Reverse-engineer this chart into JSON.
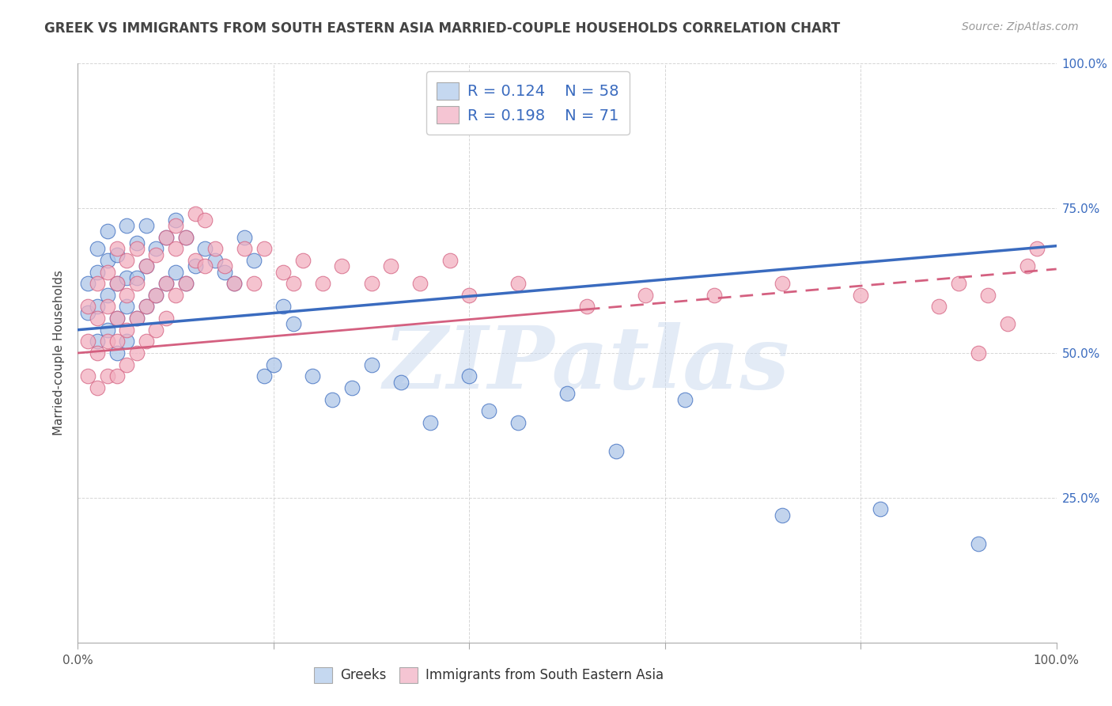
{
  "title": "GREEK VS IMMIGRANTS FROM SOUTH EASTERN ASIA MARRIED-COUPLE HOUSEHOLDS CORRELATION CHART",
  "source": "Source: ZipAtlas.com",
  "ylabel": "Married-couple Households",
  "watermark": "ZIPatlas",
  "blue_R": 0.124,
  "blue_N": 58,
  "pink_R": 0.198,
  "pink_N": 71,
  "xlim": [
    0.0,
    1.0
  ],
  "ylim": [
    0.0,
    1.0
  ],
  "blue_color": "#aec6e8",
  "pink_color": "#f2afc0",
  "blue_line_color": "#3a6bbf",
  "pink_line_color": "#d46080",
  "title_color": "#444444",
  "source_color": "#999999",
  "background_color": "#ffffff",
  "plot_bg_color": "#ffffff",
  "grid_color": "#cccccc",
  "legend_box_color_blue": "#c5d8f0",
  "legend_box_color_pink": "#f5c5d3",
  "blue_line_start_y": 0.54,
  "blue_line_end_y": 0.685,
  "pink_line_start_y": 0.5,
  "pink_line_end_y": 0.645,
  "blue_scatter_x": [
    0.01,
    0.01,
    0.02,
    0.02,
    0.02,
    0.02,
    0.03,
    0.03,
    0.03,
    0.03,
    0.04,
    0.04,
    0.04,
    0.04,
    0.05,
    0.05,
    0.05,
    0.05,
    0.06,
    0.06,
    0.06,
    0.07,
    0.07,
    0.07,
    0.08,
    0.08,
    0.09,
    0.09,
    0.1,
    0.1,
    0.11,
    0.11,
    0.12,
    0.13,
    0.14,
    0.15,
    0.16,
    0.17,
    0.18,
    0.19,
    0.2,
    0.21,
    0.22,
    0.24,
    0.26,
    0.28,
    0.3,
    0.33,
    0.36,
    0.4,
    0.42,
    0.45,
    0.5,
    0.55,
    0.62,
    0.72,
    0.82,
    0.92
  ],
  "blue_scatter_y": [
    0.57,
    0.62,
    0.52,
    0.58,
    0.64,
    0.68,
    0.54,
    0.6,
    0.66,
    0.71,
    0.5,
    0.56,
    0.62,
    0.67,
    0.52,
    0.58,
    0.63,
    0.72,
    0.56,
    0.63,
    0.69,
    0.58,
    0.65,
    0.72,
    0.6,
    0.68,
    0.62,
    0.7,
    0.64,
    0.73,
    0.62,
    0.7,
    0.65,
    0.68,
    0.66,
    0.64,
    0.62,
    0.7,
    0.66,
    0.46,
    0.48,
    0.58,
    0.55,
    0.46,
    0.42,
    0.44,
    0.48,
    0.45,
    0.38,
    0.46,
    0.4,
    0.38,
    0.43,
    0.33,
    0.42,
    0.22,
    0.23,
    0.17
  ],
  "pink_scatter_x": [
    0.01,
    0.01,
    0.01,
    0.02,
    0.02,
    0.02,
    0.02,
    0.03,
    0.03,
    0.03,
    0.03,
    0.04,
    0.04,
    0.04,
    0.04,
    0.04,
    0.05,
    0.05,
    0.05,
    0.05,
    0.06,
    0.06,
    0.06,
    0.06,
    0.07,
    0.07,
    0.07,
    0.08,
    0.08,
    0.08,
    0.09,
    0.09,
    0.09,
    0.1,
    0.1,
    0.1,
    0.11,
    0.11,
    0.12,
    0.12,
    0.13,
    0.13,
    0.14,
    0.15,
    0.16,
    0.17,
    0.18,
    0.19,
    0.21,
    0.22,
    0.23,
    0.25,
    0.27,
    0.3,
    0.32,
    0.35,
    0.38,
    0.4,
    0.45,
    0.52,
    0.58,
    0.65,
    0.72,
    0.8,
    0.88,
    0.9,
    0.92,
    0.93,
    0.95,
    0.97,
    0.98
  ],
  "pink_scatter_y": [
    0.46,
    0.52,
    0.58,
    0.44,
    0.5,
    0.56,
    0.62,
    0.46,
    0.52,
    0.58,
    0.64,
    0.46,
    0.52,
    0.56,
    0.62,
    0.68,
    0.48,
    0.54,
    0.6,
    0.66,
    0.5,
    0.56,
    0.62,
    0.68,
    0.52,
    0.58,
    0.65,
    0.54,
    0.6,
    0.67,
    0.56,
    0.62,
    0.7,
    0.72,
    0.6,
    0.68,
    0.62,
    0.7,
    0.66,
    0.74,
    0.65,
    0.73,
    0.68,
    0.65,
    0.62,
    0.68,
    0.62,
    0.68,
    0.64,
    0.62,
    0.66,
    0.62,
    0.65,
    0.62,
    0.65,
    0.62,
    0.66,
    0.6,
    0.62,
    0.58,
    0.6,
    0.6,
    0.62,
    0.6,
    0.58,
    0.62,
    0.5,
    0.6,
    0.55,
    0.65,
    0.68
  ]
}
